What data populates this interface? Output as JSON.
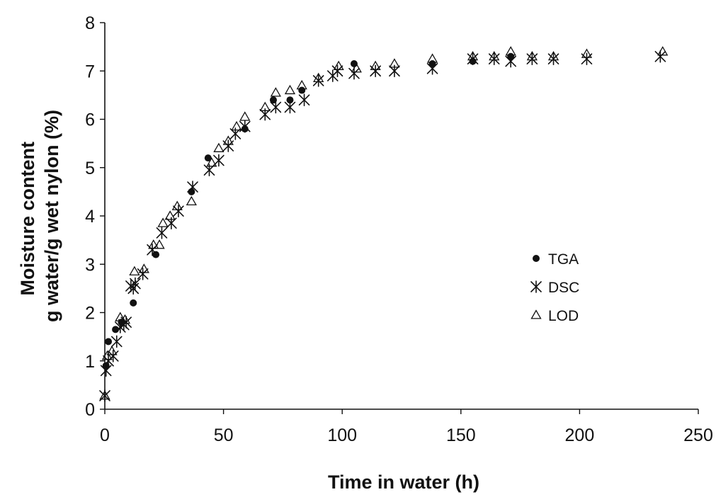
{
  "chart_data": {
    "type": "scatter",
    "xlabel": "Time in water  (h)",
    "ylabel_lines": [
      "Moisture content",
      "g water/g wet nylon (%)"
    ],
    "xlim": [
      0,
      250
    ],
    "ylim": [
      0,
      8
    ],
    "x_ticks": [
      {
        "value": 0,
        "label": "0"
      },
      {
        "value": 50,
        "label": "50"
      },
      {
        "value": 100,
        "label": "100"
      },
      {
        "value": 150,
        "label": "150"
      },
      {
        "value": 200,
        "label": "200"
      },
      {
        "value": 250,
        "label": "250"
      }
    ],
    "y_ticks": [
      {
        "value": 0,
        "label": "0"
      },
      {
        "value": 1,
        "label": "1"
      },
      {
        "value": 2,
        "label": "2"
      },
      {
        "value": 3,
        "label": "3"
      },
      {
        "value": 4,
        "label": "4"
      },
      {
        "value": 5,
        "label": "5"
      },
      {
        "value": 6,
        "label": "6"
      },
      {
        "value": 7,
        "label": "7"
      },
      {
        "value": 8,
        "label": "8"
      }
    ],
    "grid": false,
    "legend_position": "right",
    "series": [
      {
        "name": "TGA",
        "marker": "filled-circle",
        "points": [
          [
            0.5,
            0.9
          ],
          [
            1.5,
            1.4
          ],
          [
            4.5,
            1.65
          ],
          [
            7,
            1.8
          ],
          [
            12,
            2.2
          ],
          [
            21.5,
            3.2
          ],
          [
            36.5,
            4.5
          ],
          [
            43.5,
            5.2
          ],
          [
            59,
            5.8
          ],
          [
            71,
            6.4
          ],
          [
            78,
            6.4
          ],
          [
            83,
            6.6
          ],
          [
            105,
            7.15
          ],
          [
            138,
            7.15
          ],
          [
            155,
            7.2
          ],
          [
            171,
            7.3
          ]
        ]
      },
      {
        "name": "DSC",
        "marker": "asterisk",
        "points": [
          [
            0,
            0.28
          ],
          [
            0.5,
            0.8
          ],
          [
            1.5,
            1.0
          ],
          [
            3.5,
            1.1
          ],
          [
            5,
            1.4
          ],
          [
            6.5,
            1.7
          ],
          [
            8,
            1.75
          ],
          [
            9,
            1.8
          ],
          [
            11,
            2.55
          ],
          [
            12,
            2.5
          ],
          [
            12.8,
            2.6
          ],
          [
            16,
            2.8
          ],
          [
            20,
            3.3
          ],
          [
            24,
            3.65
          ],
          [
            28,
            3.85
          ],
          [
            31,
            4.1
          ],
          [
            37,
            4.6
          ],
          [
            44,
            4.95
          ],
          [
            48,
            5.15
          ],
          [
            52,
            5.45
          ],
          [
            55,
            5.7
          ],
          [
            59,
            5.85
          ],
          [
            67.5,
            6.1
          ],
          [
            72,
            6.25
          ],
          [
            78,
            6.25
          ],
          [
            84,
            6.4
          ],
          [
            90,
            6.8
          ],
          [
            96,
            6.9
          ],
          [
            98,
            7.0
          ],
          [
            105,
            6.95
          ],
          [
            114,
            7.0
          ],
          [
            122,
            7.0
          ],
          [
            138,
            7.05
          ],
          [
            155,
            7.25
          ],
          [
            164,
            7.25
          ],
          [
            171,
            7.2
          ],
          [
            180,
            7.25
          ],
          [
            189,
            7.25
          ],
          [
            203,
            7.25
          ],
          [
            234,
            7.3
          ]
        ]
      },
      {
        "name": "LOD",
        "marker": "open-triangle",
        "points": [
          [
            0,
            0.28
          ],
          [
            1,
            1.1
          ],
          [
            3,
            1.2
          ],
          [
            6.5,
            1.9
          ],
          [
            8.5,
            1.85
          ],
          [
            12.5,
            2.85
          ],
          [
            16.5,
            2.9
          ],
          [
            20.5,
            3.4
          ],
          [
            23,
            3.4
          ],
          [
            24.5,
            3.85
          ],
          [
            27.5,
            4.0
          ],
          [
            30.5,
            4.2
          ],
          [
            36.5,
            4.3
          ],
          [
            45,
            5.1
          ],
          [
            48,
            5.4
          ],
          [
            52,
            5.55
          ],
          [
            55.5,
            5.85
          ],
          [
            59,
            6.05
          ],
          [
            67.5,
            6.25
          ],
          [
            72,
            6.55
          ],
          [
            78,
            6.6
          ],
          [
            83,
            6.7
          ],
          [
            90,
            6.85
          ],
          [
            98.5,
            7.1
          ],
          [
            106,
            7.05
          ],
          [
            114,
            7.1
          ],
          [
            122,
            7.15
          ],
          [
            138,
            7.25
          ],
          [
            155,
            7.3
          ],
          [
            164,
            7.3
          ],
          [
            171,
            7.4
          ],
          [
            180,
            7.3
          ],
          [
            189,
            7.3
          ],
          [
            203,
            7.35
          ],
          [
            235,
            7.4
          ]
        ]
      }
    ]
  }
}
